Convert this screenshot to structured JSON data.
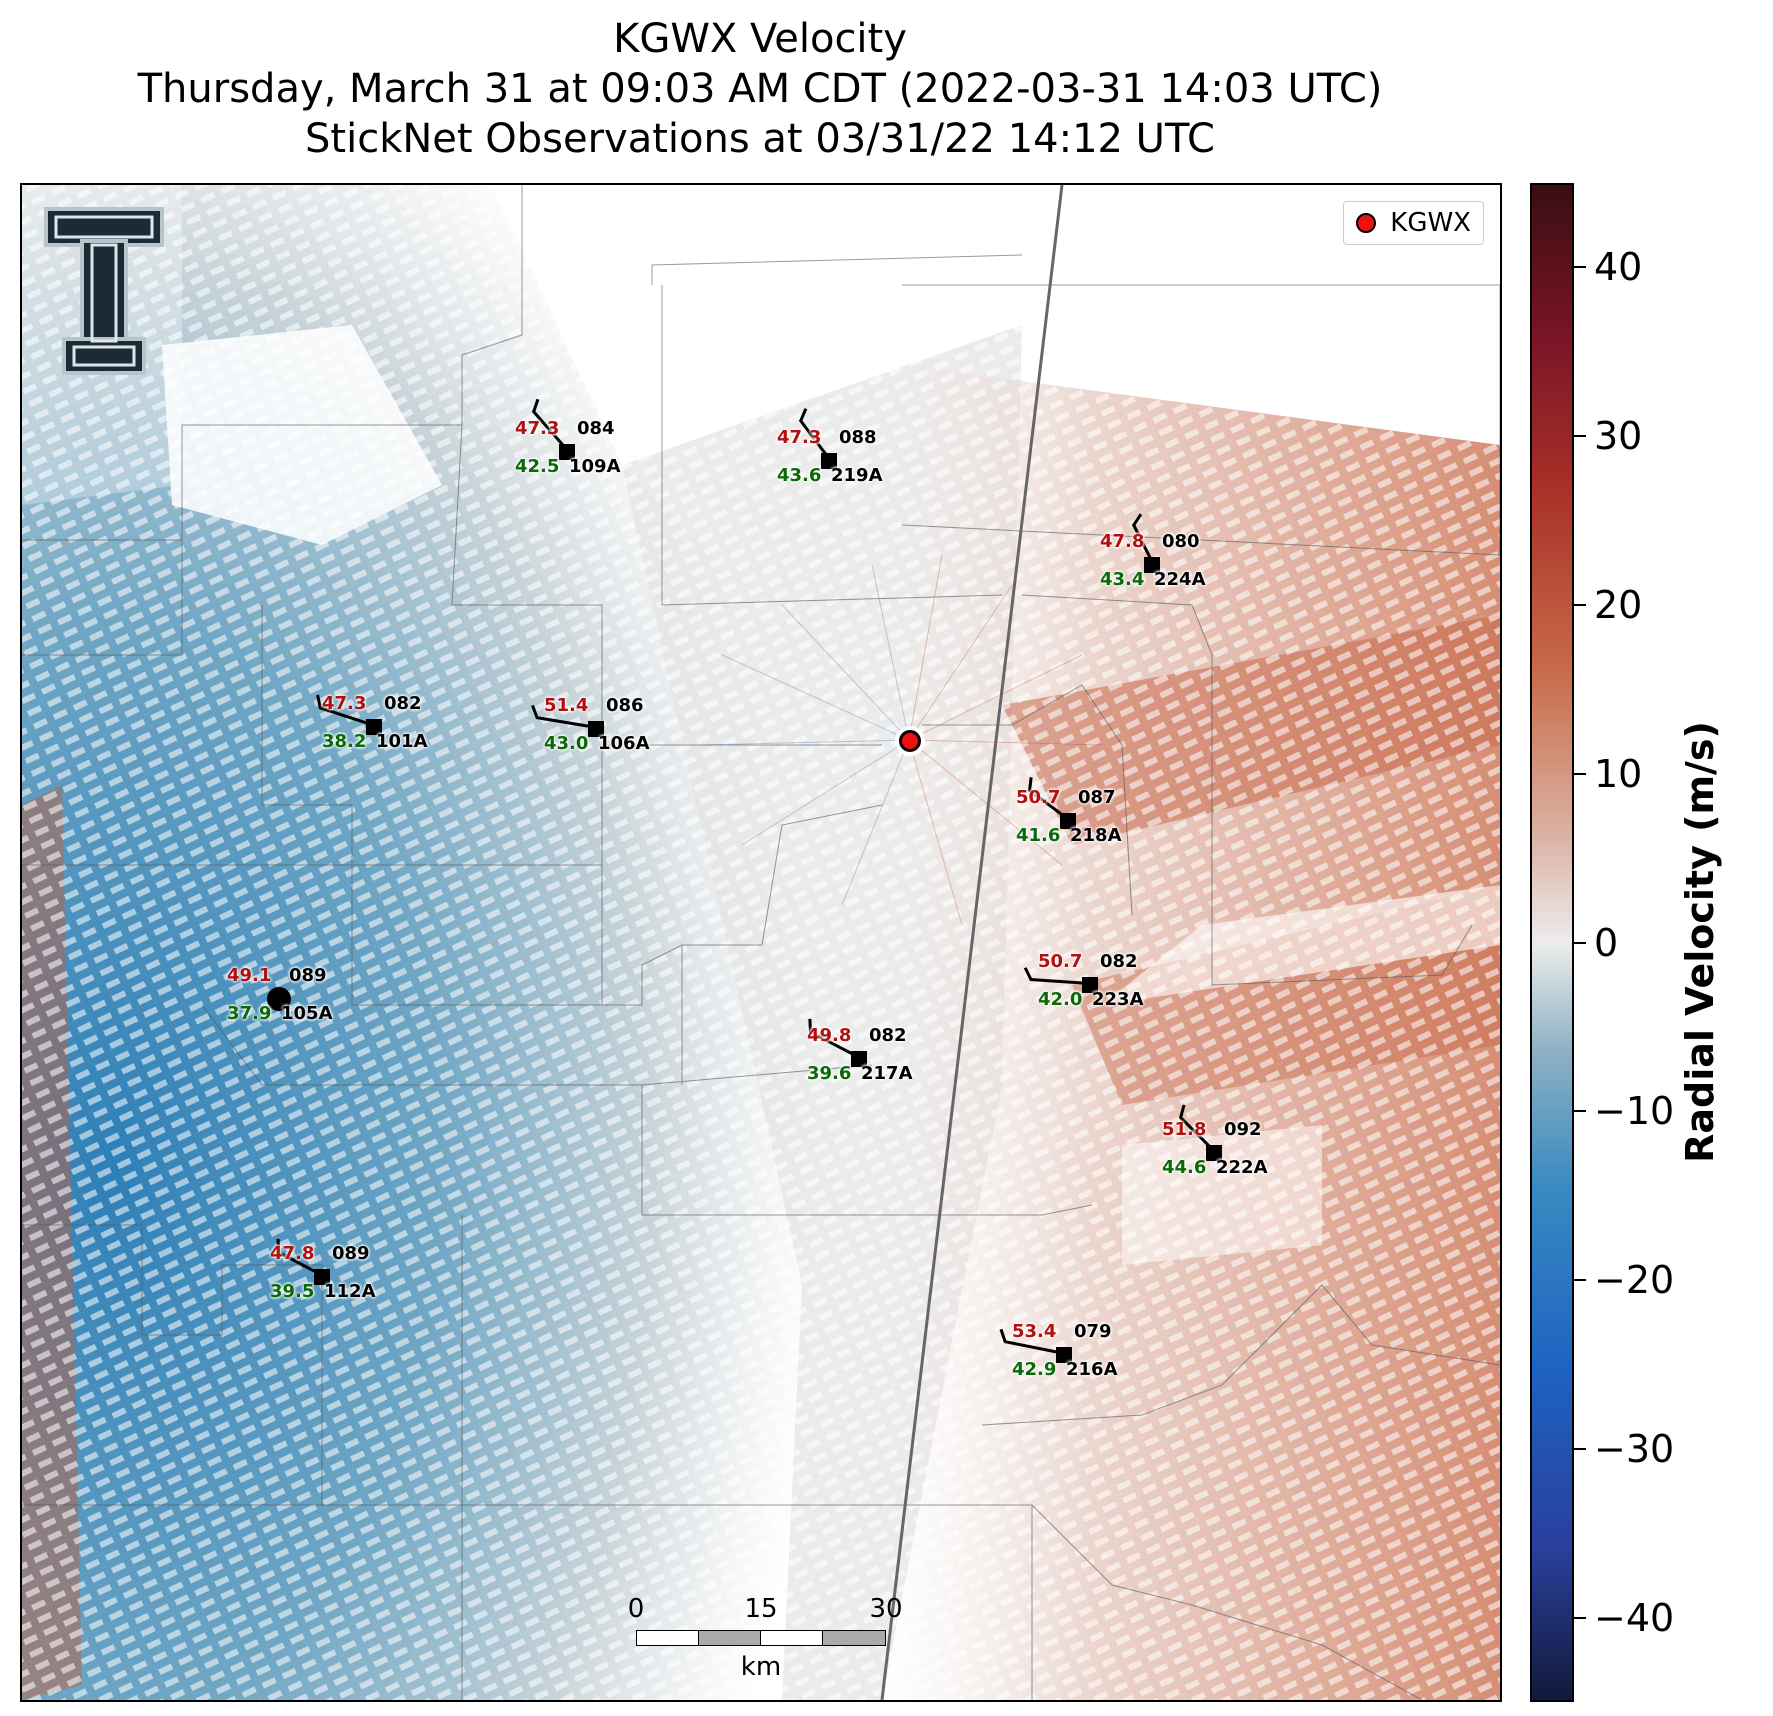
{
  "title": {
    "line1": "KGWX Velocity",
    "line2": "Thursday, March 31 at 09:03 AM CDT (2022-03-31 14:03 UTC)",
    "line3": "StickNet Observations at 03/31/22 14:12 UTC"
  },
  "legend": {
    "label": "KGWX"
  },
  "colorbar": {
    "label": "Radial Velocity (m/s)",
    "ticks": [
      "40",
      "30",
      "20",
      "10",
      "0",
      "−10",
      "−20",
      "−30",
      "−40"
    ],
    "range": [
      -45,
      45
    ]
  },
  "scalebar": {
    "labels": [
      "0",
      "15",
      "30"
    ],
    "unit": "km"
  },
  "colors": {
    "station_value_red": "#b01010",
    "station_value_green": "#0a6a0a",
    "radar_dot": "#ee1111"
  },
  "stations": [
    {
      "id": "109A",
      "temp": "47.3",
      "dir": "084",
      "wind": "42.5"
    },
    {
      "id": "219A",
      "temp": "47.3",
      "dir": "088",
      "wind": "43.6"
    },
    {
      "id": "224A",
      "temp": "47.8",
      "dir": "080",
      "wind": "43.4"
    },
    {
      "id": "101A",
      "temp": "47.3",
      "dir": "082",
      "wind": "38.2"
    },
    {
      "id": "106A",
      "temp": "51.4",
      "dir": "086",
      "wind": "43.0"
    },
    {
      "id": "218A",
      "temp": "50.7",
      "dir": "087",
      "wind": "41.6"
    },
    {
      "id": "105A",
      "temp": "49.1",
      "dir": "089",
      "wind": "37.9"
    },
    {
      "id": "223A",
      "temp": "50.7",
      "dir": "082",
      "wind": "42.0"
    },
    {
      "id": "217A",
      "temp": "49.8",
      "dir": "082",
      "wind": "39.6"
    },
    {
      "id": "222A",
      "temp": "51.8",
      "dir": "092",
      "wind": "44.6"
    },
    {
      "id": "112A",
      "temp": "47.8",
      "dir": "089",
      "wind": "39.5"
    },
    {
      "id": "216A",
      "temp": "53.4",
      "dir": "079",
      "wind": "42.9"
    }
  ]
}
